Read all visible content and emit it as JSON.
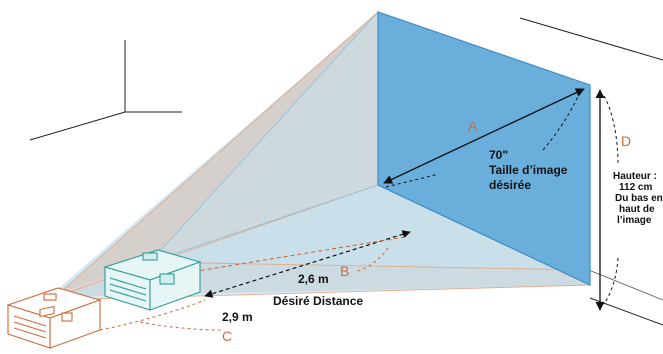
{
  "diagram": {
    "letters": {
      "a": "A",
      "b": "B",
      "c": "C",
      "d": "D"
    },
    "screen": {
      "size_value": "70\"",
      "size_caption_line1": "Taille d’image",
      "size_caption_line2": "désirée"
    },
    "distances": {
      "near": "2,6 m",
      "far": "2,9 m",
      "caption": "Désiré Distance"
    },
    "height": {
      "line1": "Hauteur :",
      "line2": "112 cm",
      "line3": "Du bas en",
      "line4": "haut de",
      "line5": "l’image"
    }
  },
  "colors": {
    "screen_fill": "#6aaedb",
    "screen_stroke": "#3f8cc4",
    "beam_blue": "#bcdff1",
    "beam_tan": "#d8c9c0",
    "orange": "#d2693a",
    "projector_teal": "#2e9b9b",
    "dark": "#111111"
  }
}
